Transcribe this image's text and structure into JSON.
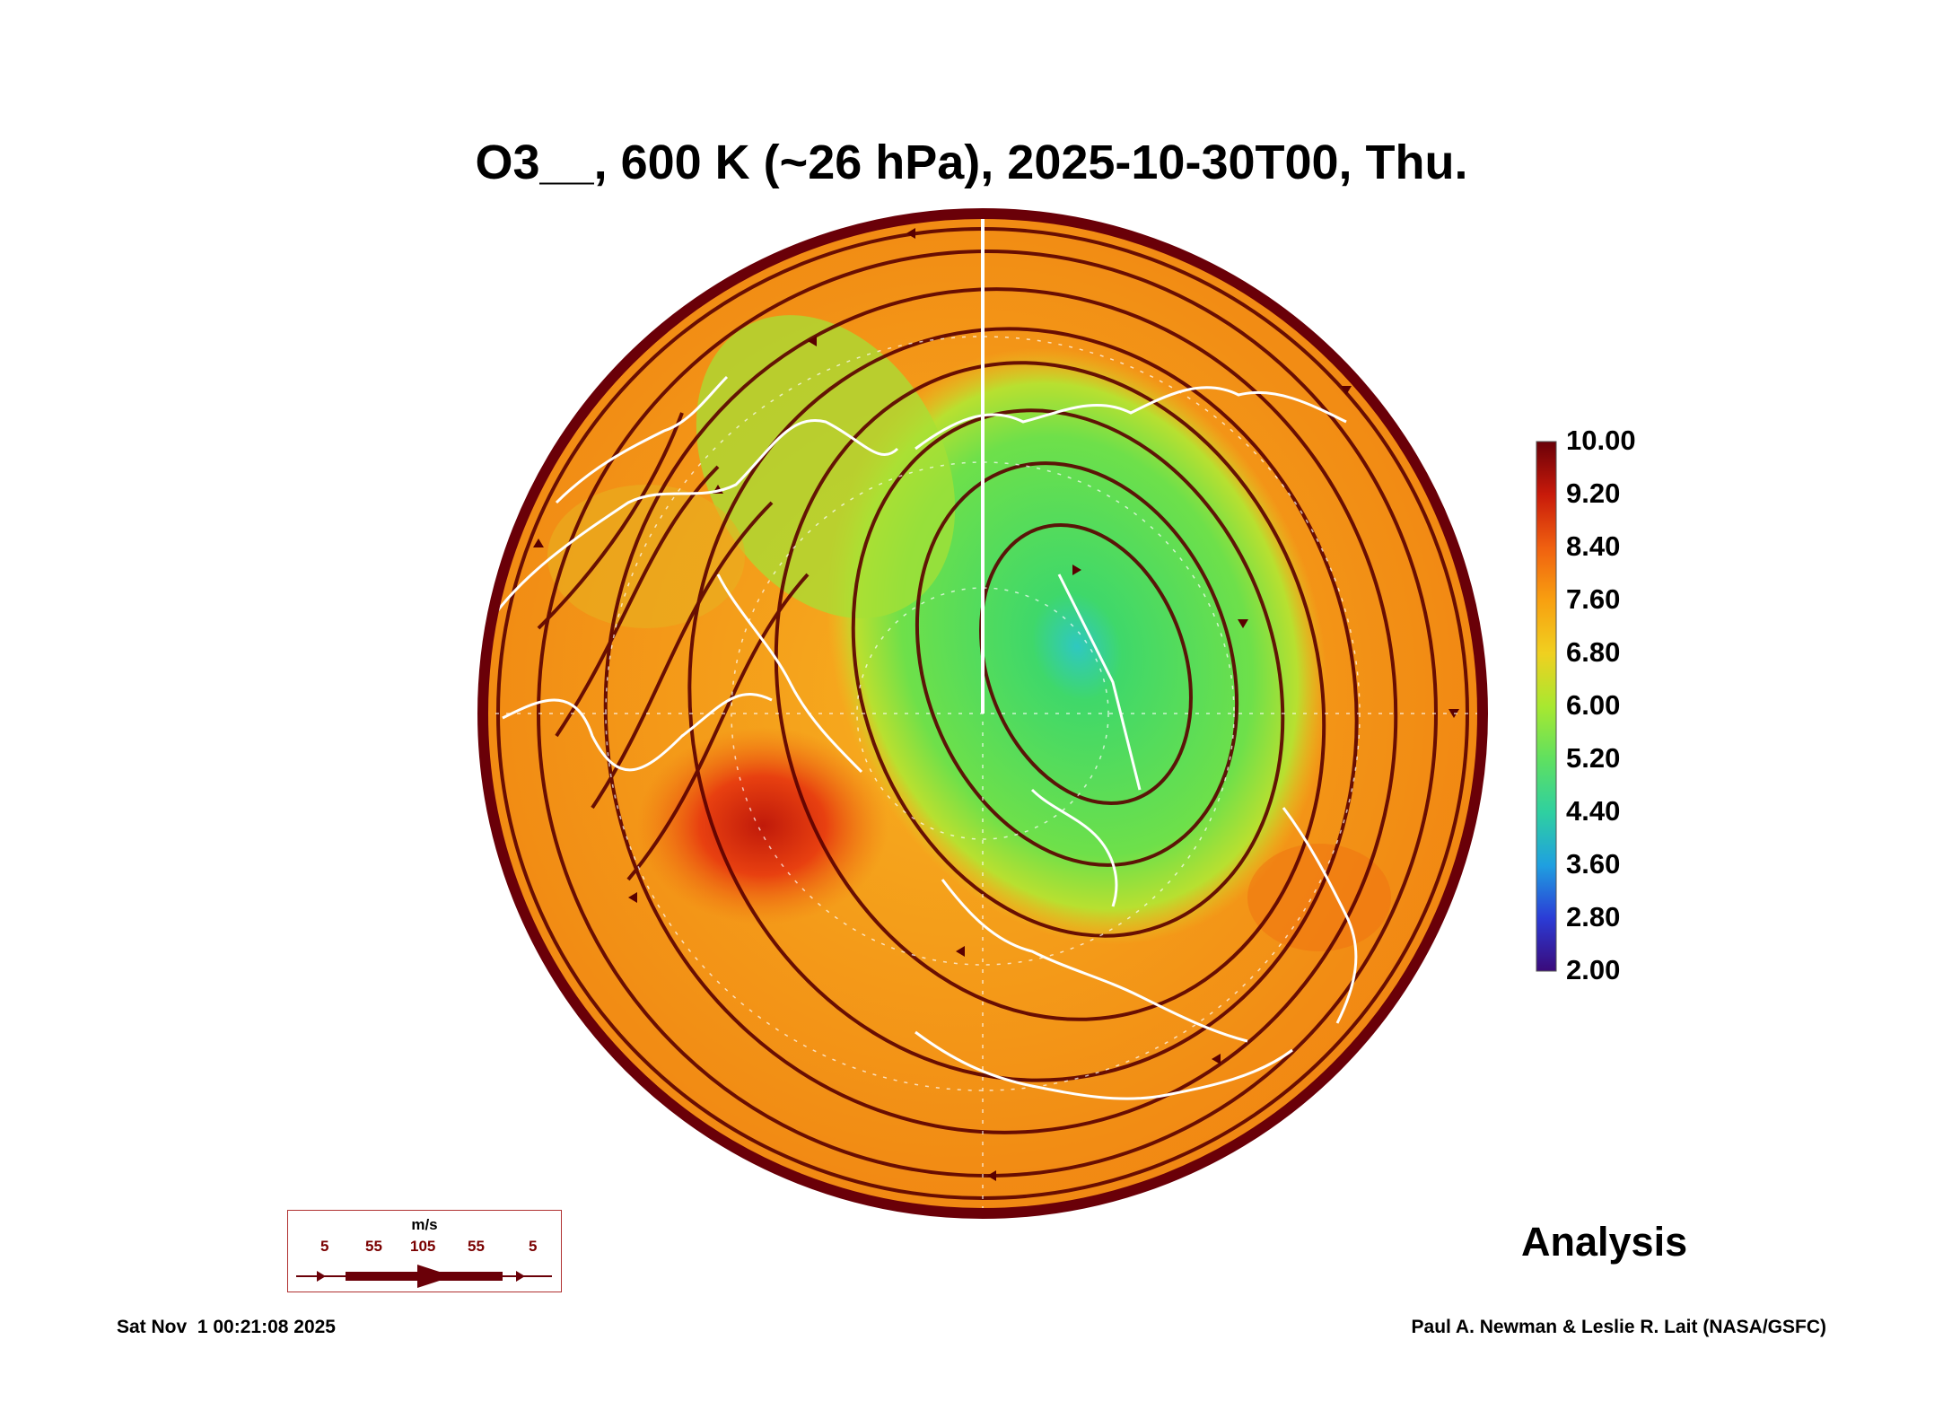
{
  "title": "O3__, 600 K (~26 hPa), 2025-10-30T00, Thu.",
  "colorbar": {
    "labels": [
      "10.00",
      "9.20",
      "8.40",
      "7.60",
      "6.80",
      "6.00",
      "5.20",
      "4.40",
      "3.60",
      "2.80",
      "2.00"
    ],
    "colors": [
      "#3a0a7a",
      "#2b3cd6",
      "#1fa0e0",
      "#2fd0a0",
      "#5fe060",
      "#a8e830",
      "#f0d020",
      "#f8a010",
      "#f06010",
      "#c81a0a",
      "#6a0008"
    ]
  },
  "wind_key": {
    "units": "m/s",
    "values": [
      "5",
      "55",
      "105",
      "55",
      "5"
    ]
  },
  "analysis_label": "Analysis",
  "footer": {
    "timestamp": "Sat Nov  1 00:21:08 2025",
    "credit": "Paul A. Newman & Leslie R. Lait (NASA/GSFC)"
  },
  "colors": {
    "streamline": "#5a0000",
    "coastline": "#ffffff",
    "rim": "#6a0008",
    "low_ozone": "#3fd86a",
    "high_ozone": "#f5a020",
    "max_ozone": "#c8200a"
  }
}
